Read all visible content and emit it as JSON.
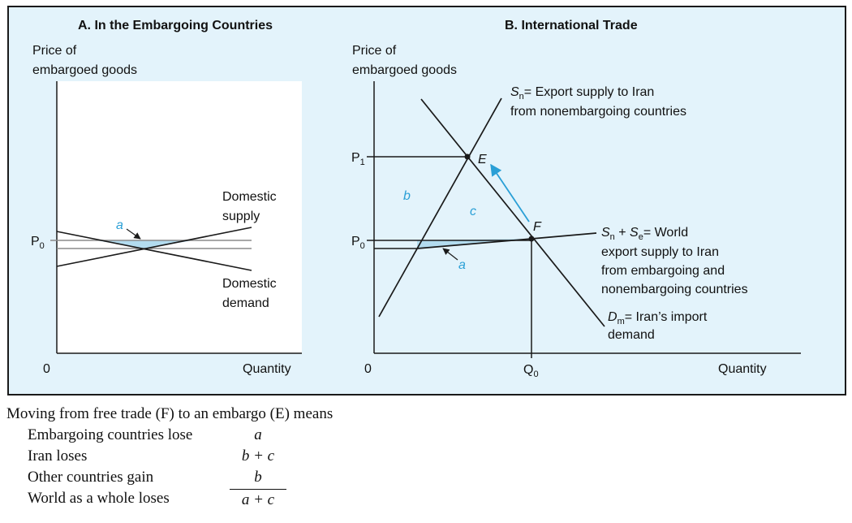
{
  "panel_a": {
    "title": "A. In the Embargoing Countries",
    "y_axis_label_line1": "Price of",
    "y_axis_label_line2": "embargoed goods",
    "x_axis_label": "Quantity",
    "origin_label": "0",
    "p0_label": "P",
    "p0_sub": "0",
    "supply_label_line1": "Domestic",
    "supply_label_line2": "supply",
    "demand_label_line1": "Domestic",
    "demand_label_line2": "demand",
    "area_a_label": "a"
  },
  "panel_b": {
    "title": "B. International Trade",
    "y_axis_label_line1": "Price of",
    "y_axis_label_line2": "embargoed goods",
    "x_axis_label": "Quantity",
    "origin_label": "0",
    "p1_label": "P",
    "p1_sub": "1",
    "p0_label": "P",
    "p0_sub": "0",
    "q0_label": "Q",
    "q0_sub": "0",
    "point_e": "E",
    "point_f": "F",
    "area_a_label": "a",
    "area_b_label": "b",
    "area_c_label": "c",
    "sn_symbol": "S",
    "sn_sub": "n",
    "sn_desc_line1": "= Export supply to Iran",
    "sn_desc_line2": "from nonembargoing countries",
    "world_s1": "S",
    "world_s1_sub": "n",
    "world_plus": " + ",
    "world_s2": "S",
    "world_s2_sub": "e",
    "world_line1_rest": "= World",
    "world_line2": "export supply to Iran",
    "world_line3": "from embargoing and",
    "world_line4": "nonembargoing countries",
    "dm_symbol": "D",
    "dm_sub": "m",
    "dm_desc_line1": "= Iran’s import",
    "dm_desc_line2": "demand"
  },
  "summary": {
    "intro": "Moving from free trade (F) to an embargo (E) means",
    "rows": [
      {
        "label": "Embargoing countries lose",
        "value": "a"
      },
      {
        "label": "Iran loses",
        "value": "b + c"
      },
      {
        "label": "Other countries gain",
        "value": "b"
      },
      {
        "label": "World as a whole loses",
        "value": "a + c"
      }
    ]
  },
  "colors": {
    "panel_background": "#e3f3fb",
    "highlight_fill": "#b3dcef",
    "accent_blue": "#2a9fd6",
    "line_color": "#1a1a1a",
    "price_line_gray": "#8a8a8a"
  }
}
